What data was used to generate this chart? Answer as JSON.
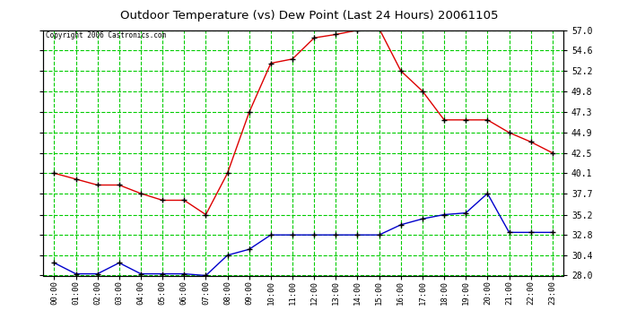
{
  "title": "Outdoor Temperature (vs) Dew Point (Last 24 Hours) 20061105",
  "copyright": "Copyright 2006 Castronics.com",
  "background_color": "#ffffff",
  "plot_background": "#ffffff",
  "grid_color": "#00cc00",
  "hours": [
    "00:00",
    "01:00",
    "02:00",
    "03:00",
    "04:00",
    "05:00",
    "06:00",
    "07:00",
    "08:00",
    "09:00",
    "10:00",
    "11:00",
    "12:00",
    "13:00",
    "14:00",
    "15:00",
    "16:00",
    "17:00",
    "18:00",
    "19:00",
    "20:00",
    "21:00",
    "22:00",
    "23:00"
  ],
  "temp": [
    40.1,
    39.4,
    38.7,
    38.7,
    37.7,
    36.9,
    36.9,
    35.2,
    40.1,
    47.3,
    53.1,
    53.6,
    56.1,
    56.5,
    57.0,
    57.2,
    52.2,
    49.8,
    46.4,
    46.4,
    46.4,
    44.9,
    43.8,
    42.5
  ],
  "dewpoint": [
    29.5,
    28.2,
    28.2,
    29.5,
    28.2,
    28.2,
    28.2,
    28.0,
    30.4,
    31.1,
    32.8,
    32.8,
    32.8,
    32.8,
    32.8,
    32.8,
    34.0,
    34.7,
    35.2,
    35.4,
    37.7,
    33.1,
    33.1,
    33.1
  ],
  "temp_color": "#dd0000",
  "dew_color": "#0000cc",
  "marker_color": "#000000",
  "ylim_min": 28.0,
  "ylim_max": 57.0,
  "yticks": [
    28.0,
    30.4,
    32.8,
    35.2,
    37.7,
    40.1,
    42.5,
    44.9,
    47.3,
    49.8,
    52.2,
    54.6,
    57.0
  ]
}
